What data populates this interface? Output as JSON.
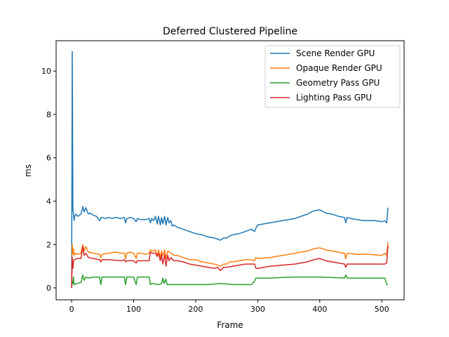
{
  "chart_data": {
    "type": "line",
    "title": "Deferred Clustered Pipeline",
    "xlabel": "Frame",
    "ylabel": "ms",
    "xlim": [
      -25,
      536
    ],
    "ylim": [
      -0.55,
      11.4
    ],
    "xticks": [
      0,
      100,
      200,
      300,
      400,
      500
    ],
    "yticks": [
      0,
      2,
      4,
      6,
      8,
      10
    ],
    "grid": false,
    "legend_position": "upper right",
    "series": [
      {
        "name": "Scene Render GPU",
        "color": "#1f77b4",
        "points": [
          [
            0,
            0
          ],
          [
            1,
            10.9
          ],
          [
            2,
            3.6
          ],
          [
            3,
            3.4
          ],
          [
            4,
            3.1
          ],
          [
            5,
            3.3
          ],
          [
            7,
            3.4
          ],
          [
            10,
            3.3
          ],
          [
            15,
            3.4
          ],
          [
            18,
            3.75
          ],
          [
            20,
            3.5
          ],
          [
            23,
            3.7
          ],
          [
            27,
            3.4
          ],
          [
            30,
            3.45
          ],
          [
            35,
            3.35
          ],
          [
            40,
            3.3
          ],
          [
            45,
            3.1
          ],
          [
            48,
            3.25
          ],
          [
            55,
            3.2
          ],
          [
            60,
            3.25
          ],
          [
            65,
            3.2
          ],
          [
            70,
            3.25
          ],
          [
            80,
            3.2
          ],
          [
            85,
            3.25
          ],
          [
            87,
            3.0
          ],
          [
            89,
            3.2
          ],
          [
            95,
            3.25
          ],
          [
            100,
            3.2
          ],
          [
            104,
            3.05
          ],
          [
            106,
            3.2
          ],
          [
            110,
            3.15
          ],
          [
            120,
            3.15
          ],
          [
            125,
            3.2
          ],
          [
            127,
            3.0
          ],
          [
            129,
            3.2
          ],
          [
            132,
            3.1
          ],
          [
            135,
            3.3
          ],
          [
            138,
            2.95
          ],
          [
            140,
            3.3
          ],
          [
            143,
            2.9
          ],
          [
            145,
            3.25
          ],
          [
            147,
            2.95
          ],
          [
            150,
            3.3
          ],
          [
            152,
            2.9
          ],
          [
            155,
            3.25
          ],
          [
            157,
            3.0
          ],
          [
            160,
            3.1
          ],
          [
            162,
            2.85
          ],
          [
            165,
            2.9
          ],
          [
            170,
            2.8
          ],
          [
            175,
            2.75
          ],
          [
            180,
            2.7
          ],
          [
            190,
            2.6
          ],
          [
            200,
            2.5
          ],
          [
            210,
            2.45
          ],
          [
            220,
            2.35
          ],
          [
            230,
            2.3
          ],
          [
            235,
            2.25
          ],
          [
            240,
            2.2
          ],
          [
            245,
            2.3
          ],
          [
            250,
            2.3
          ],
          [
            255,
            2.4
          ],
          [
            260,
            2.45
          ],
          [
            270,
            2.5
          ],
          [
            280,
            2.6
          ],
          [
            290,
            2.7
          ],
          [
            295,
            2.6
          ],
          [
            297,
            2.75
          ],
          [
            300,
            2.9
          ],
          [
            310,
            2.95
          ],
          [
            320,
            3.0
          ],
          [
            330,
            3.05
          ],
          [
            340,
            3.1
          ],
          [
            350,
            3.15
          ],
          [
            360,
            3.2
          ],
          [
            370,
            3.3
          ],
          [
            380,
            3.4
          ],
          [
            390,
            3.55
          ],
          [
            400,
            3.6
          ],
          [
            410,
            3.45
          ],
          [
            420,
            3.4
          ],
          [
            430,
            3.3
          ],
          [
            440,
            3.25
          ],
          [
            442,
            3.0
          ],
          [
            444,
            3.25
          ],
          [
            450,
            3.2
          ],
          [
            460,
            3.15
          ],
          [
            470,
            3.1
          ],
          [
            480,
            3.1
          ],
          [
            490,
            3.1
          ],
          [
            500,
            3.05
          ],
          [
            505,
            3.1
          ],
          [
            508,
            3.0
          ],
          [
            510,
            3.7
          ]
        ]
      },
      {
        "name": "Opaque Render GPU",
        "color": "#ff7f0e",
        "points": [
          [
            0,
            0
          ],
          [
            1,
            2.0
          ],
          [
            2,
            1.6
          ],
          [
            3,
            1.8
          ],
          [
            4,
            1.5
          ],
          [
            6,
            1.6
          ],
          [
            10,
            1.55
          ],
          [
            15,
            1.6
          ],
          [
            18,
            2.0
          ],
          [
            20,
            1.7
          ],
          [
            23,
            1.9
          ],
          [
            27,
            1.65
          ],
          [
            35,
            1.6
          ],
          [
            45,
            1.55
          ],
          [
            47,
            1.4
          ],
          [
            49,
            1.55
          ],
          [
            60,
            1.6
          ],
          [
            70,
            1.65
          ],
          [
            80,
            1.6
          ],
          [
            85,
            1.6
          ],
          [
            87,
            1.35
          ],
          [
            89,
            1.6
          ],
          [
            95,
            1.65
          ],
          [
            100,
            1.6
          ],
          [
            104,
            1.35
          ],
          [
            106,
            1.6
          ],
          [
            110,
            1.6
          ],
          [
            120,
            1.55
          ],
          [
            125,
            1.6
          ],
          [
            127,
            1.75
          ],
          [
            130,
            1.7
          ],
          [
            135,
            1.75
          ],
          [
            138,
            1.45
          ],
          [
            140,
            1.75
          ],
          [
            143,
            1.4
          ],
          [
            145,
            1.7
          ],
          [
            147,
            1.5
          ],
          [
            150,
            1.75
          ],
          [
            152,
            1.35
          ],
          [
            155,
            1.7
          ],
          [
            160,
            1.6
          ],
          [
            165,
            1.5
          ],
          [
            170,
            1.5
          ],
          [
            180,
            1.4
          ],
          [
            190,
            1.3
          ],
          [
            200,
            1.3
          ],
          [
            210,
            1.2
          ],
          [
            220,
            1.15
          ],
          [
            230,
            1.1
          ],
          [
            235,
            1.05
          ],
          [
            240,
            1.0
          ],
          [
            245,
            1.1
          ],
          [
            250,
            1.1
          ],
          [
            255,
            1.2
          ],
          [
            260,
            1.2
          ],
          [
            270,
            1.25
          ],
          [
            280,
            1.3
          ],
          [
            290,
            1.3
          ],
          [
            295,
            1.25
          ],
          [
            297,
            1.4
          ],
          [
            300,
            1.35
          ],
          [
            320,
            1.4
          ],
          [
            340,
            1.5
          ],
          [
            360,
            1.6
          ],
          [
            380,
            1.7
          ],
          [
            390,
            1.8
          ],
          [
            400,
            1.85
          ],
          [
            410,
            1.75
          ],
          [
            420,
            1.7
          ],
          [
            430,
            1.65
          ],
          [
            440,
            1.6
          ],
          [
            442,
            1.35
          ],
          [
            444,
            1.6
          ],
          [
            460,
            1.55
          ],
          [
            480,
            1.55
          ],
          [
            500,
            1.5
          ],
          [
            505,
            1.6
          ],
          [
            508,
            1.5
          ],
          [
            510,
            2.1
          ]
        ]
      },
      {
        "name": "Geometry Pass GPU",
        "color": "#2ca02c",
        "points": [
          [
            0,
            0
          ],
          [
            1,
            0.3
          ],
          [
            2,
            0.2
          ],
          [
            3,
            0.5
          ],
          [
            4,
            0.15
          ],
          [
            8,
            0.2
          ],
          [
            15,
            0.25
          ],
          [
            18,
            0.6
          ],
          [
            20,
            0.35
          ],
          [
            23,
            0.5
          ],
          [
            27,
            0.45
          ],
          [
            35,
            0.5
          ],
          [
            45,
            0.5
          ],
          [
            47,
            0.15
          ],
          [
            49,
            0.5
          ],
          [
            60,
            0.5
          ],
          [
            80,
            0.5
          ],
          [
            85,
            0.5
          ],
          [
            87,
            0.15
          ],
          [
            89,
            0.5
          ],
          [
            100,
            0.5
          ],
          [
            104,
            0.15
          ],
          [
            106,
            0.5
          ],
          [
            120,
            0.5
          ],
          [
            125,
            0.5
          ],
          [
            127,
            0.15
          ],
          [
            130,
            0.2
          ],
          [
            140,
            0.15
          ],
          [
            145,
            0.2
          ],
          [
            147,
            0.45
          ],
          [
            149,
            0.2
          ],
          [
            152,
            0.4
          ],
          [
            154,
            0.15
          ],
          [
            160,
            0.15
          ],
          [
            180,
            0.15
          ],
          [
            200,
            0.15
          ],
          [
            220,
            0.15
          ],
          [
            240,
            0.2
          ],
          [
            260,
            0.15
          ],
          [
            280,
            0.15
          ],
          [
            290,
            0.15
          ],
          [
            295,
            0.3
          ],
          [
            297,
            0.45
          ],
          [
            300,
            0.45
          ],
          [
            320,
            0.45
          ],
          [
            340,
            0.48
          ],
          [
            360,
            0.5
          ],
          [
            380,
            0.5
          ],
          [
            400,
            0.5
          ],
          [
            420,
            0.48
          ],
          [
            440,
            0.45
          ],
          [
            442,
            0.6
          ],
          [
            444,
            0.45
          ],
          [
            460,
            0.45
          ],
          [
            480,
            0.45
          ],
          [
            500,
            0.45
          ],
          [
            505,
            0.45
          ],
          [
            508,
            0.15
          ],
          [
            510,
            0.15
          ]
        ]
      },
      {
        "name": "Lighting Pass GPU",
        "color": "#d62728",
        "points": [
          [
            0,
            0
          ],
          [
            1,
            1.4
          ],
          [
            2,
            0.9
          ],
          [
            3,
            1.2
          ],
          [
            4,
            1.3
          ],
          [
            8,
            1.35
          ],
          [
            15,
            1.35
          ],
          [
            18,
            1.9
          ],
          [
            20,
            1.5
          ],
          [
            23,
            1.6
          ],
          [
            27,
            1.4
          ],
          [
            35,
            1.35
          ],
          [
            45,
            1.3
          ],
          [
            47,
            1.2
          ],
          [
            49,
            1.3
          ],
          [
            60,
            1.3
          ],
          [
            80,
            1.25
          ],
          [
            85,
            1.3
          ],
          [
            87,
            1.2
          ],
          [
            89,
            1.25
          ],
          [
            100,
            1.25
          ],
          [
            104,
            1.15
          ],
          [
            106,
            1.25
          ],
          [
            120,
            1.25
          ],
          [
            125,
            1.25
          ],
          [
            127,
            1.65
          ],
          [
            130,
            1.6
          ],
          [
            135,
            1.6
          ],
          [
            138,
            1.45
          ],
          [
            140,
            1.6
          ],
          [
            143,
            1.25
          ],
          [
            145,
            1.55
          ],
          [
            147,
            1.1
          ],
          [
            150,
            1.55
          ],
          [
            152,
            1.0
          ],
          [
            155,
            1.5
          ],
          [
            157,
            1.25
          ],
          [
            160,
            1.4
          ],
          [
            165,
            1.25
          ],
          [
            170,
            1.25
          ],
          [
            180,
            1.2
          ],
          [
            190,
            1.1
          ],
          [
            200,
            1.05
          ],
          [
            210,
            1.0
          ],
          [
            220,
            0.95
          ],
          [
            230,
            0.9
          ],
          [
            235,
            0.95
          ],
          [
            240,
            0.8
          ],
          [
            245,
            0.95
          ],
          [
            250,
            0.95
          ],
          [
            260,
            1.0
          ],
          [
            270,
            1.05
          ],
          [
            280,
            1.1
          ],
          [
            290,
            1.1
          ],
          [
            295,
            1.1
          ],
          [
            297,
            0.9
          ],
          [
            300,
            0.9
          ],
          [
            310,
            0.95
          ],
          [
            320,
            1.0
          ],
          [
            340,
            1.05
          ],
          [
            360,
            1.1
          ],
          [
            380,
            1.2
          ],
          [
            390,
            1.3
          ],
          [
            400,
            1.35
          ],
          [
            410,
            1.25
          ],
          [
            420,
            1.2
          ],
          [
            430,
            1.15
          ],
          [
            440,
            1.1
          ],
          [
            442,
            0.95
          ],
          [
            444,
            1.1
          ],
          [
            460,
            1.1
          ],
          [
            480,
            1.1
          ],
          [
            500,
            1.1
          ],
          [
            505,
            1.1
          ],
          [
            508,
            1.15
          ],
          [
            510,
            1.95
          ]
        ]
      }
    ]
  }
}
